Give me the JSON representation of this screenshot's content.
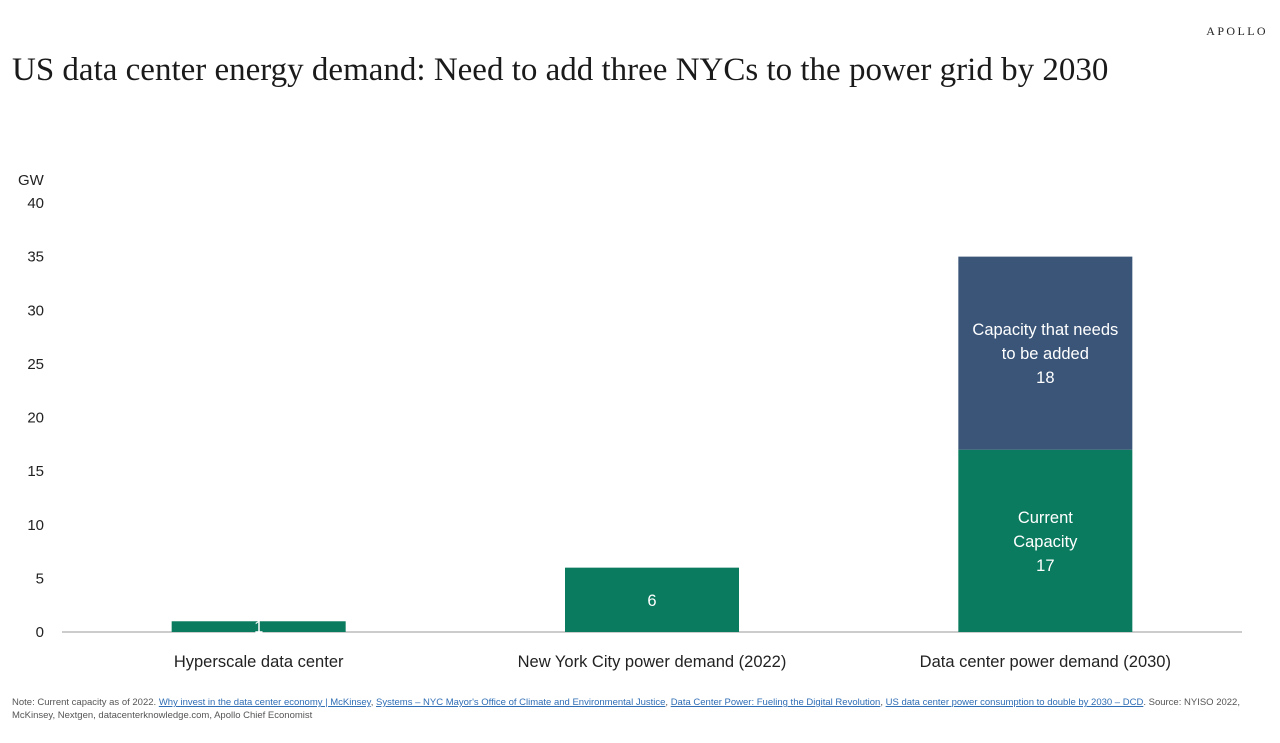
{
  "brand": "APOLLO",
  "title": "US data center energy demand: Need to add three NYCs to the power grid by 2030",
  "chart_data": {
    "type": "bar",
    "stacked": true,
    "ylabel": "GW",
    "ylim": [
      0,
      40
    ],
    "yticks": [
      0,
      5,
      10,
      15,
      20,
      25,
      30,
      35,
      40
    ],
    "grid": false,
    "categories": [
      "Hyperscale data center",
      "New York City power demand (2022)",
      "Data center power demand (2030)"
    ],
    "bars": [
      {
        "category": "Hyperscale data center",
        "segments": [
          {
            "value": 1,
            "label": [
              "1"
            ],
            "color": "#0a7b5f"
          }
        ]
      },
      {
        "category": "New York City power demand (2022)",
        "segments": [
          {
            "value": 6,
            "label": [
              "6"
            ],
            "color": "#0a7b5f"
          }
        ]
      },
      {
        "category": "Data center power demand (2030)",
        "segments": [
          {
            "value": 17,
            "label": [
              "Current",
              "Capacity",
              "17"
            ],
            "color": "#0a7b5f"
          },
          {
            "value": 18,
            "label": [
              "Capacity that needs",
              "to be added",
              "18"
            ],
            "color": "#3a5578"
          }
        ]
      }
    ]
  },
  "footnote": {
    "prefix": "Note: Current capacity as of 2022.",
    "links": [
      "Why invest in the data center economy | McKinsey",
      "Systems – NYC Mayor's Office of Climate and Environmental Justice",
      "Data Center Power: Fueling the Digital Revolution",
      "US data center power consumption to double by 2030 – DCD"
    ],
    "source": "Source: NYISO 2022, McKinsey, Nextgen, datacenterknowledge.com, Apollo Chief Economist"
  }
}
